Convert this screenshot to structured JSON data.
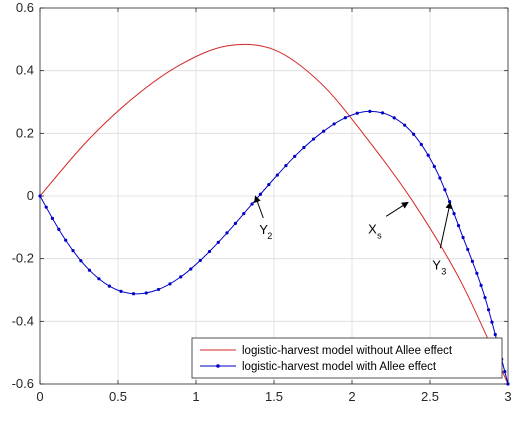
{
  "chart_data": {
    "type": "line",
    "title": "",
    "xlabel": "",
    "ylabel": "",
    "xlim": [
      0,
      3
    ],
    "ylim": [
      -0.6,
      0.6
    ],
    "x_ticks": [
      "0",
      "0.5",
      "1",
      "1.5",
      "2",
      "2.5",
      "3"
    ],
    "y_ticks": [
      "-0.6",
      "-0.4",
      "-0.2",
      "0",
      "0.2",
      "0.4",
      "0.6"
    ],
    "grid": true,
    "legend_position": "bottom-right",
    "series": [
      {
        "name": "logistic-harvest model without Allee effect",
        "color": "#d62728",
        "marker": "none",
        "x": [
          0,
          0.3,
          0.6,
          0.9,
          1.2,
          1.5,
          1.8,
          2.1,
          2.4,
          2.7,
          3.0
        ],
        "y": [
          0,
          0.174,
          0.314,
          0.419,
          0.479,
          0.467,
          0.36,
          0.181,
          -0.025,
          -0.275,
          -0.6
        ]
      },
      {
        "name": "logistic-harvest model with Allee effect",
        "color": "#0000c8",
        "marker": "dot",
        "x": [
          0,
          0.15,
          0.3,
          0.45,
          0.6,
          0.75,
          0.9,
          1.05,
          1.2,
          1.35,
          1.5,
          1.65,
          1.8,
          1.95,
          2.1,
          2.25,
          2.4,
          2.55,
          2.7,
          2.85,
          3.0
        ],
        "y": [
          0,
          -0.13,
          -0.228,
          -0.289,
          -0.312,
          -0.3,
          -0.259,
          -0.195,
          -0.117,
          -0.031,
          0.055,
          0.135,
          0.2,
          0.248,
          0.27,
          0.255,
          0.194,
          0.072,
          -0.117,
          -0.32,
          -0.6
        ]
      }
    ],
    "annotations": [
      {
        "label": "Y",
        "subscript": "2",
        "x": 1.38,
        "y": 0.0
      },
      {
        "label": "X",
        "subscript": "s",
        "x": 2.36,
        "y": -0.02
      },
      {
        "label": "Y",
        "subscript": "3",
        "x": 2.63,
        "y": -0.02
      }
    ]
  }
}
